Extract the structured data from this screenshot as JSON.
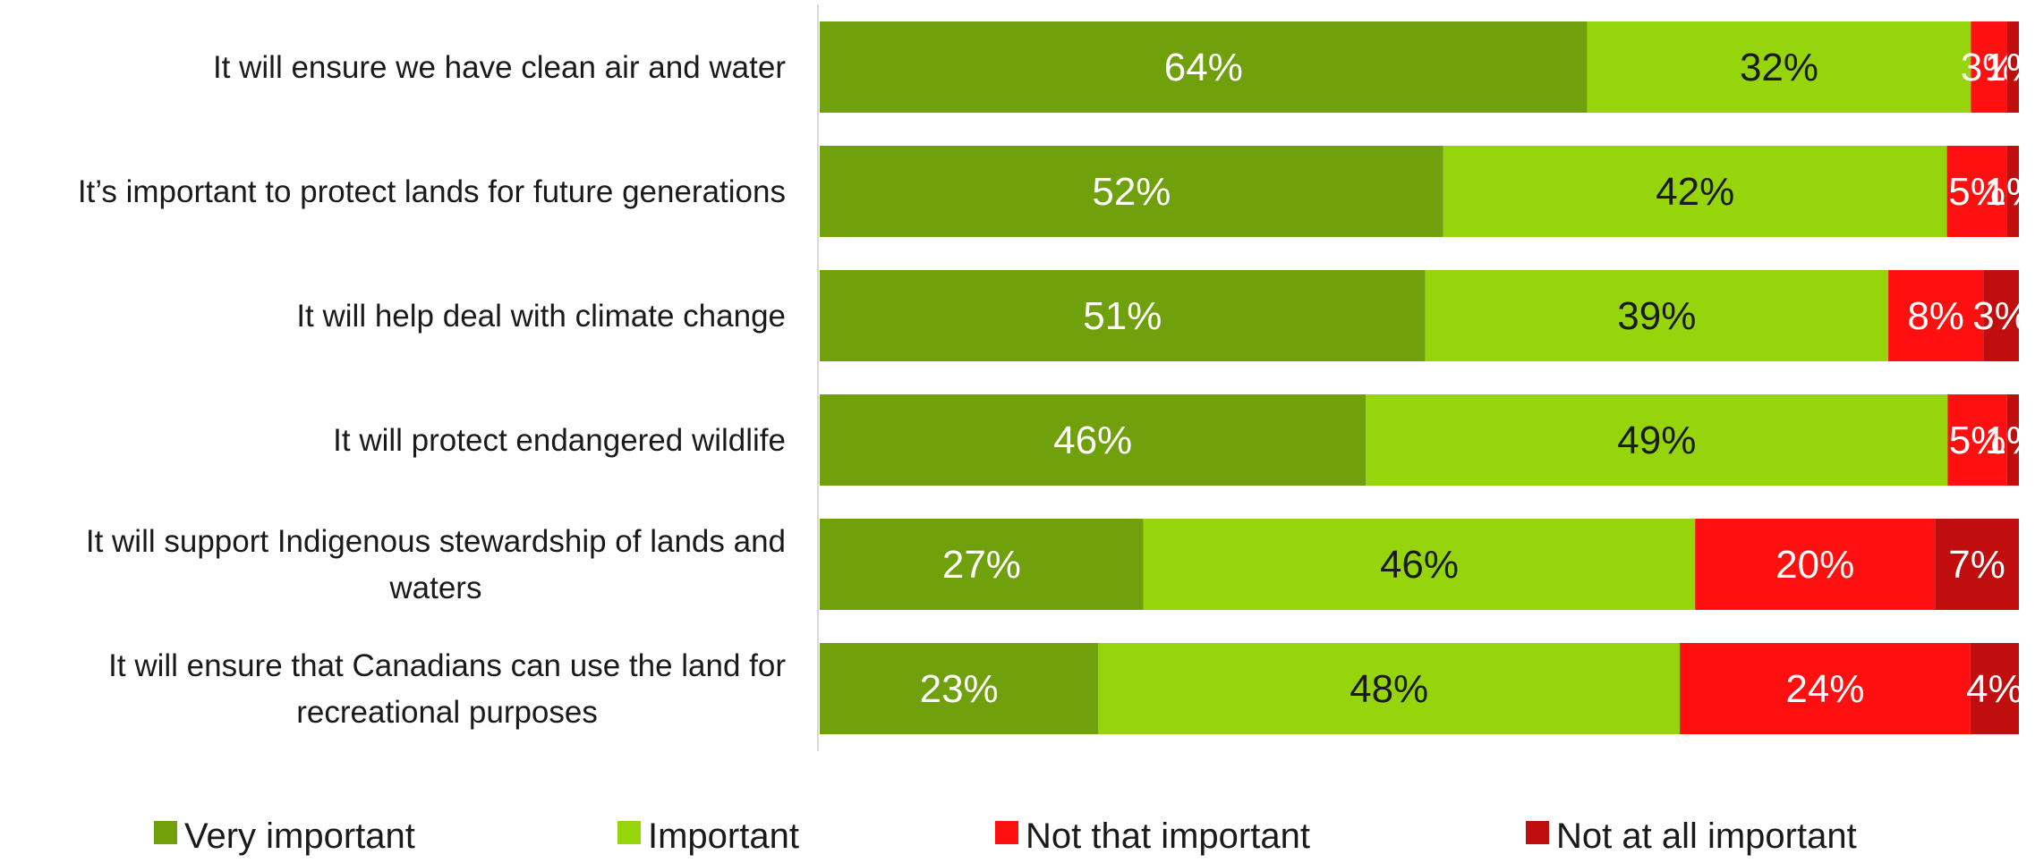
{
  "chart_data": {
    "type": "bar",
    "orientation": "horizontal",
    "stacked": true,
    "percent": true,
    "categories": [
      "It will ensure we have clean air and water",
      "It’s important to protect lands for future generations",
      "It will help deal with climate change",
      "It will protect endangered wildlife",
      "It will support Indigenous stewardship of lands and waters",
      "It will ensure that Canadians can use the land for recreational purposes"
    ],
    "series": [
      {
        "name": "Very important",
        "color": "#70a00c",
        "label_color": "#ffffff",
        "values": [
          64,
          52,
          51,
          46,
          27,
          23
        ]
      },
      {
        "name": "Important",
        "color": "#96d50c",
        "label_color": "#1a1a1a",
        "values": [
          32,
          42,
          39,
          49,
          46,
          48
        ]
      },
      {
        "name": "Not that important",
        "color": "#ff0f0f",
        "label_color": "#ffffff",
        "values": [
          3,
          5,
          8,
          5,
          20,
          24
        ]
      },
      {
        "name": "Not at all important",
        "color": "#c00d0d",
        "label_color": "#ffffff",
        "values": [
          1,
          1,
          3,
          1,
          7,
          4
        ]
      }
    ],
    "legend_position": "bottom",
    "grid": false
  }
}
